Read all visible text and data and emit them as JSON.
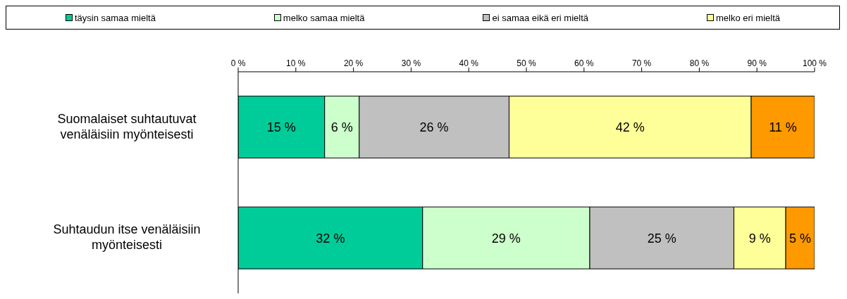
{
  "chart_data": {
    "type": "bar",
    "orientation": "horizontal",
    "stacked": true,
    "legend": "top",
    "categories": [
      "Suomalaiset suhtautuvat venäläisiin myönteisesti",
      "Suhtaudun itse venäläisiin myönteisesti"
    ],
    "xlim": [
      0,
      100
    ],
    "xticks": [
      {
        "value": 0,
        "label": "0 %"
      },
      {
        "value": 10,
        "label": "10 %"
      },
      {
        "value": 20,
        "label": "20 %"
      },
      {
        "value": 30,
        "label": "30 %"
      },
      {
        "value": 40,
        "label": "40 %"
      },
      {
        "value": 50,
        "label": "50 %"
      },
      {
        "value": 60,
        "label": "60 %"
      },
      {
        "value": 70,
        "label": "70 %"
      },
      {
        "value": 80,
        "label": "80 %"
      },
      {
        "value": 90,
        "label": "90 %"
      },
      {
        "value": 100,
        "label": "100 %"
      }
    ],
    "series": [
      {
        "name": "täysin samaa mieltä",
        "color": "#00cc99",
        "values": [
          15,
          32
        ],
        "value_labels": [
          "15 %",
          "32 %"
        ]
      },
      {
        "name": "melko samaa mieltä",
        "color": "#ccffcc",
        "values": [
          6,
          29
        ],
        "value_labels": [
          "6 %",
          "29 %"
        ]
      },
      {
        "name": "ei samaa eikä eri mieltä",
        "color": "#c0c0c0",
        "values": [
          26,
          25
        ],
        "value_labels": [
          "26 %",
          "25 %"
        ]
      },
      {
        "name": "melko eri mieltä",
        "color": "#ffff99",
        "values": [
          42,
          9
        ],
        "value_labels": [
          "42 %",
          "9 %"
        ]
      },
      {
        "color": "#ff9900",
        "values": [
          11,
          5
        ],
        "value_labels": [
          "11 %",
          "5 %"
        ]
      }
    ]
  }
}
